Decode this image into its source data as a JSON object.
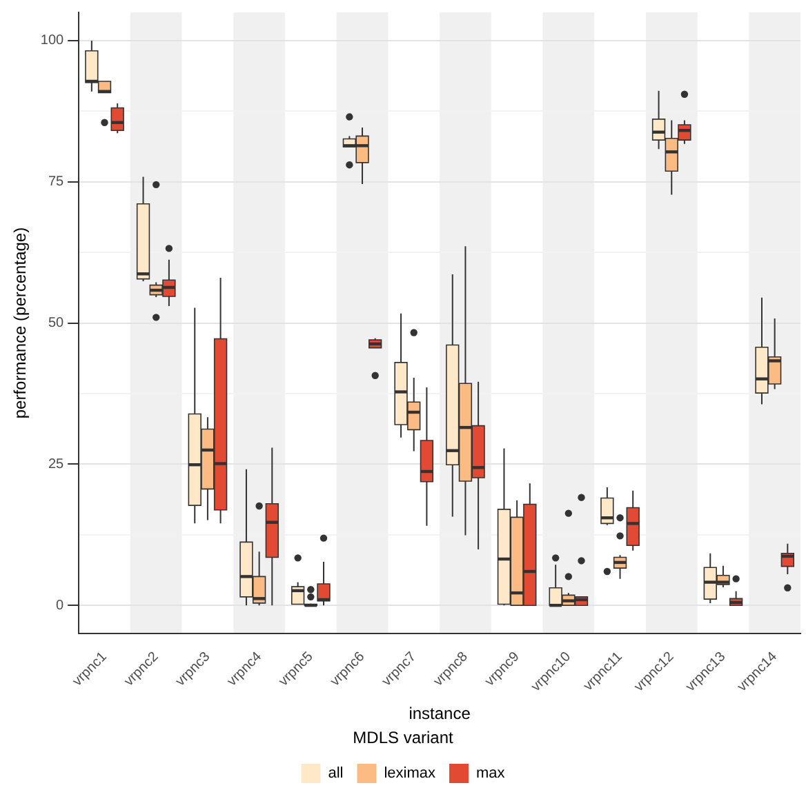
{
  "chart_data": {
    "type": "box",
    "xlabel": "instance",
    "ylabel": "performance (percentage)",
    "legend_title": "MDLS variant",
    "legend": "bottom",
    "grid": "y",
    "categories": [
      "vrpnc1",
      "vrpnc2",
      "vrpnc3",
      "vrpnc4",
      "vrpnc5",
      "vrpnc6",
      "vrpnc7",
      "vrpnc8",
      "vrpnc9",
      "vrpnc10",
      "vrpnc11",
      "vrpnc12",
      "vrpnc13",
      "vrpnc14"
    ],
    "ylim": [
      -5,
      105
    ],
    "yticks": [
      0,
      {
        "value": 12.5,
        "label": null
      },
      25,
      {
        "value": 37.5,
        "label": null
      },
      50,
      {
        "value": 62.5,
        "label": null
      },
      75,
      {
        "value": 87.5,
        "label": null
      },
      100
    ],
    "series": [
      {
        "name": "all",
        "color": "#fee8c8",
        "boxes": [
          {
            "low": 91,
            "q1": 92.6,
            "median": 92.8,
            "q3": 98.2,
            "high": 100
          },
          {
            "low": 57.4,
            "q1": 57.8,
            "median": 58.7,
            "q3": 71.1,
            "high": 75.9
          },
          {
            "low": 14.5,
            "q1": 17.7,
            "median": 24.9,
            "q3": 33.9,
            "high": 52.7
          },
          {
            "low": 0,
            "q1": 1.5,
            "median": 5.1,
            "q3": 11.2,
            "high": 24.1
          },
          {
            "low": 0.2,
            "q1": 0.2,
            "median": 2.6,
            "q3": 3.3,
            "high": 4.1,
            "outliers": [
              8.4
            ]
          },
          {
            "low": 81.2,
            "q1": 81.2,
            "median": 81.4,
            "q3": 82.6,
            "high": 83.1,
            "outliers": [
              86.5,
              78.0
            ]
          },
          {
            "low": 29.7,
            "q1": 32.0,
            "median": 37.8,
            "q3": 43.0,
            "high": 51.7
          },
          {
            "low": 15.7,
            "q1": 24.9,
            "median": 27.4,
            "q3": 46.1,
            "high": 58.6
          },
          {
            "low": 0,
            "q1": 0.2,
            "median": 8.2,
            "q3": 17.0,
            "high": 27.8
          },
          {
            "low": 0,
            "q1": 0,
            "median": 0,
            "q3": 3.1,
            "high": 7.2,
            "outliers": [
              8.4
            ]
          },
          {
            "low": 14.2,
            "q1": 14.5,
            "median": 15.5,
            "q3": 19.0,
            "high": 20.9,
            "outliers": [
              6.0
            ]
          },
          {
            "low": 80.8,
            "q1": 82.4,
            "median": 83.8,
            "q3": 86.1,
            "high": 91.1
          },
          {
            "low": 0.4,
            "q1": 1.1,
            "median": 4.1,
            "q3": 6.7,
            "high": 9.2
          },
          {
            "low": 35.6,
            "q1": 37.6,
            "median": 40.1,
            "q3": 45.7,
            "high": 54.5
          }
        ]
      },
      {
        "name": "leximax",
        "color": "#fdbb84",
        "boxes": [
          {
            "low": 90.8,
            "q1": 90.8,
            "median": 91,
            "q3": 92.8,
            "high": 92.8,
            "outliers": [
              85.5
            ]
          },
          {
            "low": 54.6,
            "q1": 55.0,
            "median": 55.8,
            "q3": 56.7,
            "high": 57.2,
            "outliers": [
              74.5,
              51.0
            ]
          },
          {
            "low": 15.1,
            "q1": 20.6,
            "median": 27.5,
            "q3": 31.2,
            "high": 33.3
          },
          {
            "low": 0,
            "q1": 0.4,
            "median": 1.2,
            "q3": 5.1,
            "high": 9.5,
            "outliers": [
              17.6
            ]
          },
          {
            "low": 0,
            "q1": 0,
            "median": 0,
            "q3": 0.2,
            "high": 0.3,
            "outliers": [
              2.8,
              1.5
            ]
          },
          {
            "low": 74.6,
            "q1": 78.4,
            "median": 81.4,
            "q3": 83.1,
            "high": 84.6
          },
          {
            "low": 27.3,
            "q1": 31.1,
            "median": 34.2,
            "q3": 36.0,
            "high": 40.3,
            "outliers": [
              48.3
            ]
          },
          {
            "low": 12.4,
            "q1": 22.0,
            "median": 31.5,
            "q3": 39.3,
            "high": 63.6
          },
          {
            "low": 0,
            "q1": 0,
            "median": 2.2,
            "q3": 15.6,
            "high": 18.6
          },
          {
            "low": 0,
            "q1": 0,
            "median": 0.8,
            "q3": 1.8,
            "high": 2.2,
            "outliers": [
              16.3,
              5.1
            ]
          },
          {
            "low": 4.7,
            "q1": 6.6,
            "median": 7.6,
            "q3": 8.5,
            "high": 8.9,
            "outliers": [
              15.5,
              12.3
            ]
          },
          {
            "low": 72.7,
            "q1": 76.9,
            "median": 80.3,
            "q3": 82.7,
            "high": 85.9
          },
          {
            "low": 3.2,
            "q1": 3.7,
            "median": 4.1,
            "q3": 5.3,
            "high": 7.0
          },
          {
            "low": 38.3,
            "q1": 39.2,
            "median": 43.3,
            "q3": 44.0,
            "high": 50.8
          }
        ]
      },
      {
        "name": "max",
        "color": "#e34a33",
        "boxes": [
          {
            "low": 83.6,
            "q1": 84.1,
            "median": 85.5,
            "q3": 88.1,
            "high": 88.9
          },
          {
            "low": 53.0,
            "q1": 54.7,
            "median": 56.3,
            "q3": 57.6,
            "high": 61.2,
            "outliers": [
              63.2
            ]
          },
          {
            "low": 14.5,
            "q1": 16.9,
            "median": 25.1,
            "q3": 47.2,
            "high": 58.0
          },
          {
            "low": 0,
            "q1": 8.5,
            "median": 14.7,
            "q3": 18.0,
            "high": 27.9
          },
          {
            "low": 0,
            "q1": 0.8,
            "median": 1.0,
            "q3": 3.8,
            "high": 7.7,
            "outliers": [
              11.9
            ]
          },
          {
            "low": 45.6,
            "q1": 45.6,
            "median": 46.3,
            "q3": 47.0,
            "high": 47.3,
            "outliers": [
              40.7
            ]
          },
          {
            "low": 14.1,
            "q1": 21.9,
            "median": 23.7,
            "q3": 29.2,
            "high": 38.6
          },
          {
            "low": 9.9,
            "q1": 22.6,
            "median": 24.4,
            "q3": 31.8,
            "high": 39.6
          },
          {
            "low": 0,
            "q1": 0,
            "median": 6.0,
            "q3": 17.9,
            "high": 21.6
          },
          {
            "low": 0,
            "q1": 0,
            "median": 1.0,
            "q3": 1.5,
            "high": 1.5,
            "outliers": [
              19.1,
              7.9
            ]
          },
          {
            "low": 9.7,
            "q1": 10.6,
            "median": 14.5,
            "q3": 17.3,
            "high": 20.3
          },
          {
            "low": 81.7,
            "q1": 82.4,
            "median": 84.1,
            "q3": 85.1,
            "high": 85.9,
            "outliers": [
              90.5
            ]
          },
          {
            "low": 0,
            "q1": 0,
            "median": 0.5,
            "q3": 1.2,
            "high": 2.5,
            "outliers": [
              4.7
            ]
          },
          {
            "low": 5.5,
            "q1": 6.9,
            "median": 8.7,
            "q3": 9.2,
            "high": 10.9,
            "outliers": [
              3.1
            ]
          }
        ]
      }
    ]
  }
}
